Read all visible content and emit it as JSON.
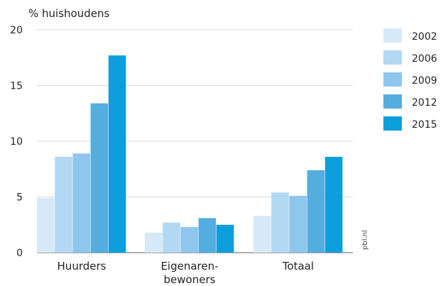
{
  "chart_data": {
    "type": "bar",
    "ylabel": "% huishoudens",
    "ylim": [
      0,
      20
    ],
    "yticks": [
      0,
      5,
      10,
      15,
      20
    ],
    "grid": true,
    "legend_position": "right",
    "categories": [
      [
        "Huurders"
      ],
      [
        "Eigenaren-",
        "bewoners"
      ],
      [
        "Totaal"
      ]
    ],
    "series": [
      {
        "name": "2002",
        "color": "#d6e9f8",
        "values": [
          4.9,
          1.8,
          3.3
        ]
      },
      {
        "name": "2006",
        "color": "#b3d8f3",
        "values": [
          8.6,
          2.7,
          5.4
        ]
      },
      {
        "name": "2009",
        "color": "#8ec6ee",
        "values": [
          8.9,
          2.3,
          5.1
        ]
      },
      {
        "name": "2012",
        "color": "#54addf",
        "values": [
          13.4,
          3.1,
          7.4
        ]
      },
      {
        "name": "2015",
        "color": "#0d9fdb",
        "values": [
          17.7,
          2.5,
          8.6
        ]
      }
    ],
    "source_label": "pbl.nl"
  }
}
